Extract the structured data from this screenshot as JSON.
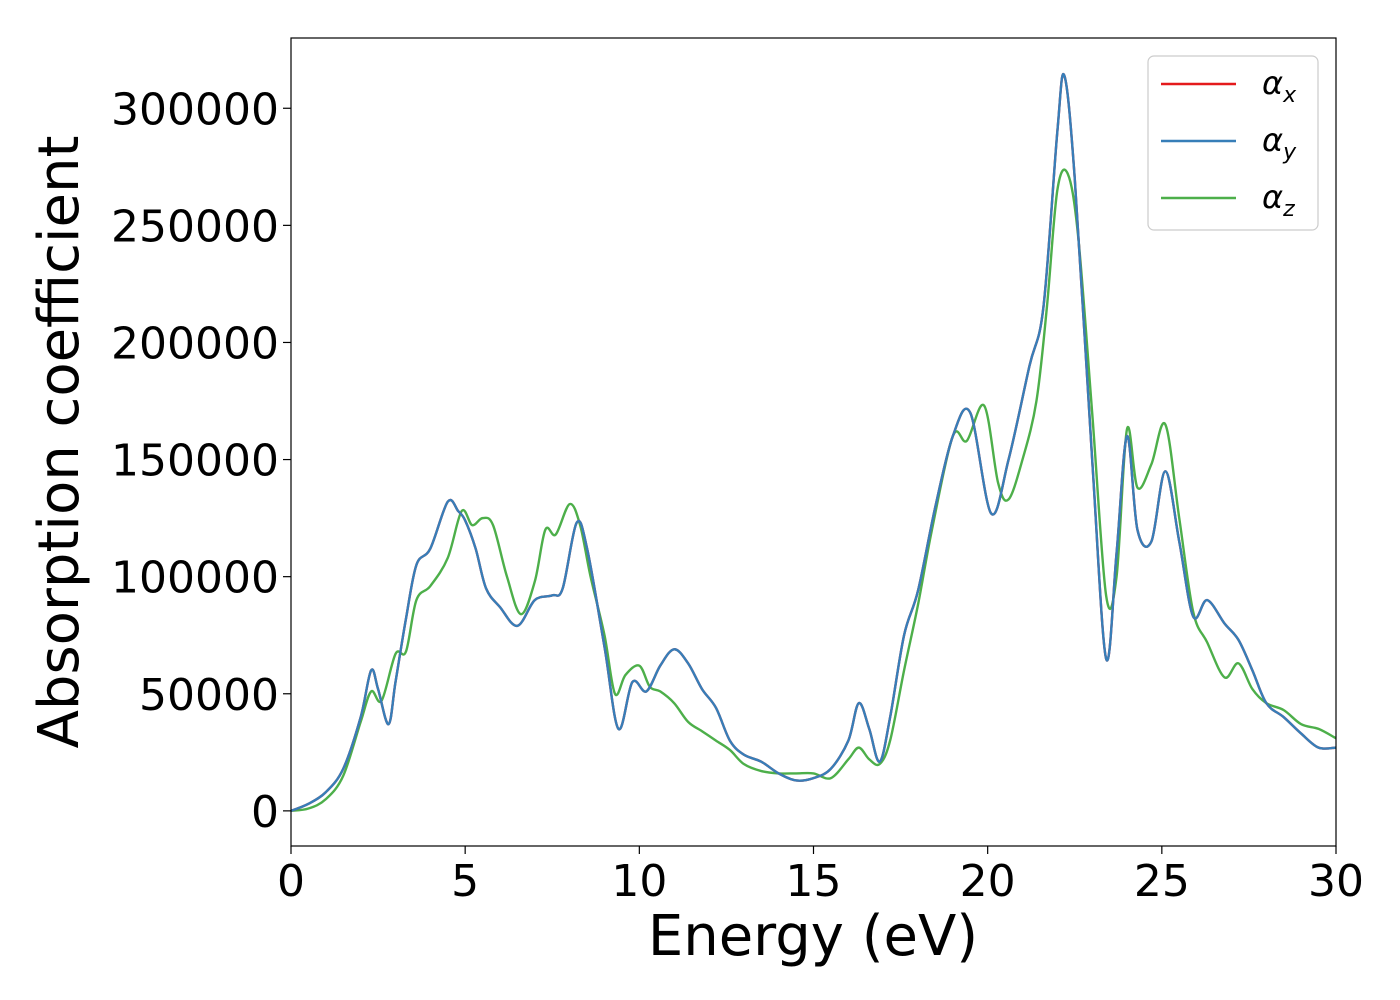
{
  "chart_data": {
    "type": "line",
    "title": "",
    "xlabel": "Energy (eV)",
    "ylabel": "Absorption coefficient",
    "xlim": [
      0,
      30
    ],
    "ylim": [
      -15000,
      330000
    ],
    "xticks": [
      0,
      5,
      10,
      15,
      20,
      25,
      30
    ],
    "xtick_labels": [
      "0",
      "5",
      "10",
      "15",
      "20",
      "25",
      "30"
    ],
    "yticks": [
      0,
      50000,
      100000,
      150000,
      200000,
      250000,
      300000
    ],
    "ytick_labels": [
      "0",
      "50000",
      "100000",
      "150000",
      "200000",
      "250000",
      "300000"
    ],
    "grid": false,
    "legend_position": "top-right",
    "series": [
      {
        "name": "α",
        "subscript": "x",
        "color": "#e41a1c",
        "x": [
          0,
          0.5,
          1.0,
          1.5,
          2.0,
          2.3,
          2.5,
          2.8,
          3.0,
          3.3,
          3.6,
          4.0,
          4.5,
          4.8,
          5.0,
          5.3,
          5.6,
          6.0,
          6.5,
          7.0,
          7.5,
          7.8,
          8.2,
          8.5,
          9.0,
          9.4,
          9.8,
          10.2,
          10.6,
          11.0,
          11.4,
          11.8,
          12.2,
          12.6,
          13.0,
          13.5,
          14.0,
          14.5,
          15.0,
          15.5,
          16.0,
          16.3,
          16.6,
          16.9,
          17.2,
          17.6,
          18.0,
          18.5,
          19.0,
          19.5,
          20.1,
          20.6,
          21.2,
          21.6,
          22.0,
          22.2,
          22.5,
          23.0,
          23.4,
          23.7,
          24.0,
          24.3,
          24.7,
          25.1,
          25.5,
          25.9,
          26.3,
          26.8,
          27.2,
          27.6,
          28.0,
          28.5,
          29.0,
          29.5,
          30.0
        ],
        "values": [
          0,
          3000,
          8000,
          18000,
          40000,
          60000,
          52000,
          37000,
          55000,
          82000,
          105000,
          112000,
          132000,
          128000,
          124000,
          112000,
          95000,
          87000,
          79000,
          90000,
          92000,
          95000,
          123000,
          112000,
          70000,
          35000,
          55000,
          51000,
          62000,
          69000,
          63000,
          52000,
          44000,
          30000,
          24000,
          21000,
          16000,
          13000,
          14000,
          18000,
          30000,
          46000,
          35000,
          21000,
          40000,
          75000,
          94000,
          130000,
          160000,
          170000,
          127000,
          150000,
          190000,
          215000,
          290000,
          314000,
          270000,
          150000,
          65000,
          110000,
          160000,
          120000,
          115000,
          145000,
          115000,
          83000,
          90000,
          80000,
          73000,
          60000,
          46000,
          40000,
          33000,
          27000,
          27000
        ]
      },
      {
        "name": "α",
        "subscript": "y",
        "color": "#377eb8",
        "x": [
          0,
          0.5,
          1.0,
          1.5,
          2.0,
          2.3,
          2.5,
          2.8,
          3.0,
          3.3,
          3.6,
          4.0,
          4.5,
          4.8,
          5.0,
          5.3,
          5.6,
          6.0,
          6.5,
          7.0,
          7.5,
          7.8,
          8.2,
          8.5,
          9.0,
          9.4,
          9.8,
          10.2,
          10.6,
          11.0,
          11.4,
          11.8,
          12.2,
          12.6,
          13.0,
          13.5,
          14.0,
          14.5,
          15.0,
          15.5,
          16.0,
          16.3,
          16.6,
          16.9,
          17.2,
          17.6,
          18.0,
          18.5,
          19.0,
          19.5,
          20.1,
          20.6,
          21.2,
          21.6,
          22.0,
          22.2,
          22.5,
          23.0,
          23.4,
          23.7,
          24.0,
          24.3,
          24.7,
          25.1,
          25.5,
          25.9,
          26.3,
          26.8,
          27.2,
          27.6,
          28.0,
          28.5,
          29.0,
          29.5,
          30.0
        ],
        "values": [
          0,
          3000,
          8000,
          18000,
          40000,
          60000,
          52000,
          37000,
          55000,
          82000,
          105000,
          112000,
          132000,
          128000,
          124000,
          112000,
          95000,
          87000,
          79000,
          90000,
          92000,
          95000,
          123000,
          112000,
          70000,
          35000,
          55000,
          51000,
          62000,
          69000,
          63000,
          52000,
          44000,
          30000,
          24000,
          21000,
          16000,
          13000,
          14000,
          18000,
          30000,
          46000,
          35000,
          21000,
          40000,
          75000,
          94000,
          130000,
          160000,
          170000,
          127000,
          150000,
          190000,
          215000,
          290000,
          314000,
          270000,
          150000,
          65000,
          110000,
          160000,
          120000,
          115000,
          145000,
          115000,
          83000,
          90000,
          80000,
          73000,
          60000,
          46000,
          40000,
          33000,
          27000,
          27000
        ]
      },
      {
        "name": "α",
        "subscript": "z",
        "color": "#4daf4a",
        "x": [
          0,
          0.5,
          1.0,
          1.5,
          2.0,
          2.3,
          2.6,
          3.0,
          3.3,
          3.6,
          4.0,
          4.5,
          4.9,
          5.2,
          5.5,
          5.8,
          6.2,
          6.6,
          7.0,
          7.3,
          7.6,
          8.0,
          8.3,
          8.6,
          9.0,
          9.3,
          9.6,
          10.0,
          10.3,
          10.6,
          11.0,
          11.4,
          11.8,
          12.2,
          12.6,
          13.0,
          13.5,
          14.0,
          14.5,
          15.0,
          15.5,
          16.0,
          16.3,
          16.6,
          16.9,
          17.2,
          17.6,
          18.0,
          18.4,
          19.0,
          19.4,
          19.9,
          20.3,
          20.6,
          21.0,
          21.4,
          21.7,
          22.0,
          22.3,
          22.6,
          23.0,
          23.4,
          23.7,
          24.0,
          24.3,
          24.7,
          25.1,
          25.5,
          25.9,
          26.3,
          26.8,
          27.2,
          27.6,
          28.0,
          28.5,
          29.0,
          29.5,
          30.0
        ],
        "values": [
          0,
          1000,
          5000,
          15000,
          38000,
          51000,
          47000,
          67000,
          68000,
          90000,
          96000,
          108000,
          128000,
          122000,
          125000,
          122000,
          100000,
          84000,
          98000,
          120000,
          118000,
          131000,
          122000,
          100000,
          75000,
          50000,
          58000,
          62000,
          53000,
          51000,
          46000,
          38000,
          34000,
          30000,
          26000,
          20000,
          17000,
          16000,
          16000,
          16000,
          14000,
          22000,
          27000,
          22000,
          20000,
          30000,
          60000,
          88000,
          120000,
          160000,
          158000,
          173000,
          140000,
          133000,
          150000,
          175000,
          215000,
          265000,
          272000,
          245000,
          170000,
          92000,
          100000,
          163000,
          138000,
          148000,
          165000,
          125000,
          85000,
          72000,
          57000,
          63000,
          52000,
          46000,
          43000,
          37000,
          35000,
          31000
        ]
      }
    ]
  }
}
